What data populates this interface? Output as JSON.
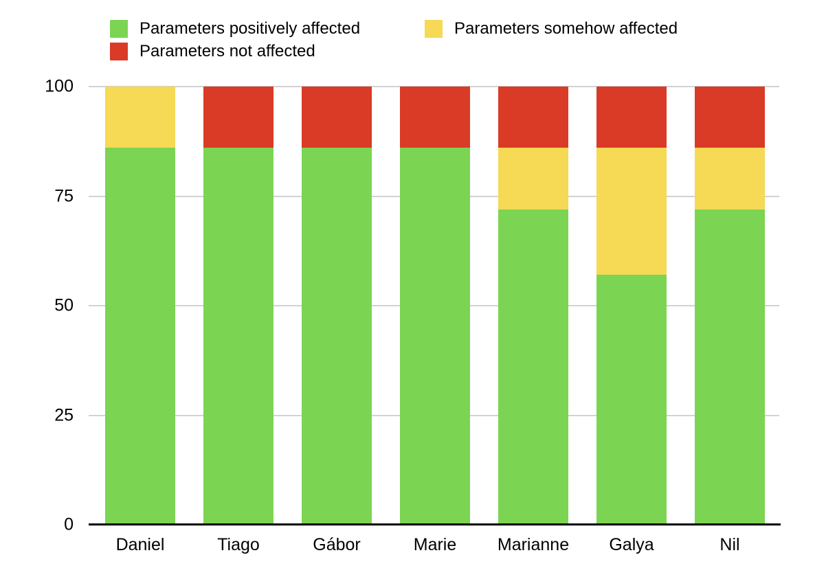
{
  "chart_data": {
    "type": "bar",
    "stacked": true,
    "title": "",
    "xlabel": "",
    "ylabel": "",
    "categories": [
      "Daniel",
      "Tiago",
      "Gábor",
      "Marie",
      "Marianne",
      "Galya",
      "Nil"
    ],
    "series": [
      {
        "name": "Parameters positively affected",
        "color": "#7CD453",
        "values": [
          86,
          86,
          86,
          86,
          72,
          57,
          72
        ]
      },
      {
        "name": "Parameters somehow affected",
        "color": "#F6D954",
        "values": [
          14,
          0,
          0,
          0,
          14,
          29,
          14
        ]
      },
      {
        "name": "Parameters not affected",
        "color": "#D93B27",
        "values": [
          0,
          14,
          14,
          14,
          14,
          14,
          14
        ]
      }
    ],
    "ylim": [
      0,
      100
    ],
    "yticks": [
      0,
      25,
      50,
      75,
      100
    ],
    "grid": true,
    "legend_position": "top",
    "background_color": "#FFFFFF",
    "gridline_color": "#D2D2D2",
    "axis_color": "#000000",
    "text_color": "#000000"
  }
}
